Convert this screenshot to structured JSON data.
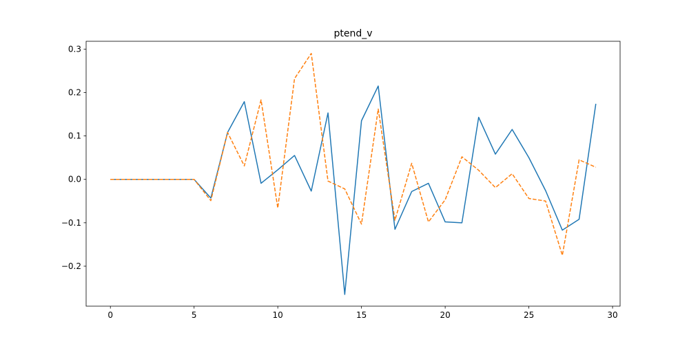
{
  "chart_data": {
    "type": "line",
    "title": "ptend_v",
    "xlabel": "",
    "ylabel": "",
    "xlim": [
      -1.45,
      30.45
    ],
    "ylim": [
      -0.292,
      0.318
    ],
    "xticks": [
      0,
      5,
      10,
      15,
      20,
      25,
      30
    ],
    "xtick_labels": [
      "0",
      "5",
      "10",
      "15",
      "20",
      "25",
      "30"
    ],
    "yticks": [
      -0.2,
      -0.1,
      0.0,
      0.1,
      0.2,
      0.3
    ],
    "ytick_labels": [
      "−0.2",
      "−0.1",
      "0.0",
      "0.1",
      "0.2",
      "0.3"
    ],
    "grid": false,
    "x": [
      0,
      1,
      2,
      3,
      4,
      5,
      6,
      7,
      8,
      9,
      10,
      11,
      12,
      13,
      14,
      15,
      16,
      17,
      18,
      19,
      20,
      21,
      22,
      23,
      24,
      25,
      26,
      27,
      28,
      29
    ],
    "series": [
      {
        "color": "#1f77b4",
        "style": "solid",
        "values": [
          0,
          0,
          0,
          0,
          0,
          0,
          -0.043,
          0.108,
          0.179,
          -0.009,
          0.022,
          0.055,
          -0.027,
          0.153,
          -0.265,
          0.135,
          0.215,
          -0.115,
          -0.028,
          -0.009,
          -0.098,
          -0.1,
          0.143,
          0.058,
          0.115,
          0.05,
          -0.026,
          -0.117,
          -0.092,
          0.174
        ]
      },
      {
        "color": "#ff7f0e",
        "style": "dashed",
        "values": [
          0,
          0,
          0,
          0,
          0,
          0,
          -0.049,
          0.108,
          0.031,
          0.183,
          -0.066,
          0.232,
          0.29,
          -0.004,
          -0.022,
          -0.103,
          0.162,
          -0.094,
          0.037,
          -0.098,
          -0.047,
          0.052,
          0.021,
          -0.019,
          0.013,
          -0.044,
          -0.05,
          -0.175,
          0.045,
          0.028
        ]
      }
    ]
  }
}
